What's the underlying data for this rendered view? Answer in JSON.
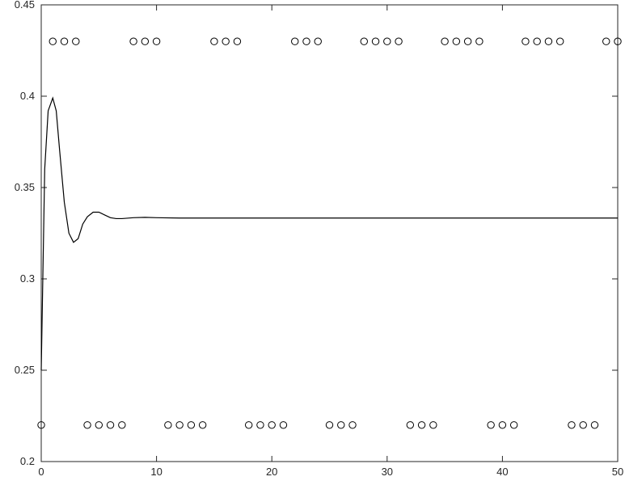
{
  "chart_data": {
    "type": "line",
    "title": "",
    "xlabel": "",
    "ylabel": "",
    "xlim": [
      0,
      50
    ],
    "ylim": [
      0.2,
      0.45
    ],
    "grid": false,
    "x_ticks": [
      0,
      10,
      20,
      30,
      40,
      50
    ],
    "x_tick_labels": [
      "0",
      "10",
      "20",
      "30",
      "40",
      "50"
    ],
    "y_ticks": [
      0.2,
      0.25,
      0.3,
      0.35,
      0.4,
      0.45
    ],
    "y_tick_labels": [
      "0.2",
      "0.25",
      "0.3",
      "0.35",
      "0.4",
      "0.45"
    ],
    "series": [
      {
        "style": "line",
        "color": "#000000",
        "x": [
          0,
          0.3,
          0.6,
          1,
          1.3,
          1.6,
          2,
          2.4,
          2.8,
          3.2,
          3.6,
          4,
          4.5,
          5,
          5.5,
          6,
          6.5,
          7,
          8,
          9,
          10,
          12,
          15,
          20,
          30,
          40,
          50
        ],
        "y": [
          0.25,
          0.36,
          0.392,
          0.399,
          0.392,
          0.37,
          0.342,
          0.325,
          0.32,
          0.322,
          0.33,
          0.334,
          0.3365,
          0.3365,
          0.335,
          0.3335,
          0.333,
          0.333,
          0.3335,
          0.3337,
          0.3335,
          0.3333,
          0.3333,
          0.3333,
          0.3333,
          0.3333,
          0.3333
        ]
      },
      {
        "style": "markers",
        "marker": "open-circle",
        "color": "#000000",
        "x": [
          0,
          1,
          2,
          3,
          4,
          5,
          6,
          7,
          8,
          9,
          10,
          11,
          12,
          13,
          14,
          15,
          16,
          17,
          18,
          19,
          20,
          21,
          22,
          23,
          24,
          25,
          26,
          27,
          28,
          29,
          30,
          31,
          32,
          33,
          34,
          35,
          36,
          37,
          38,
          39,
          40,
          41,
          42,
          43,
          44,
          45,
          46,
          47,
          48,
          49,
          50
        ],
        "y": [
          0.22,
          0.43,
          0.43,
          0.43,
          0.22,
          0.22,
          0.22,
          0.22,
          0.43,
          0.43,
          0.43,
          0.22,
          0.22,
          0.22,
          0.22,
          0.43,
          0.43,
          0.43,
          0.22,
          0.22,
          0.22,
          0.22,
          0.43,
          0.43,
          0.43,
          0.22,
          0.22,
          0.22,
          0.43,
          0.43,
          0.43,
          0.43,
          0.22,
          0.22,
          0.22,
          0.43,
          0.43,
          0.43,
          0.43,
          0.22,
          0.22,
          0.22,
          0.43,
          0.43,
          0.43,
          0.43,
          0.22,
          0.22,
          0.22,
          0.43,
          0.43
        ]
      }
    ]
  }
}
